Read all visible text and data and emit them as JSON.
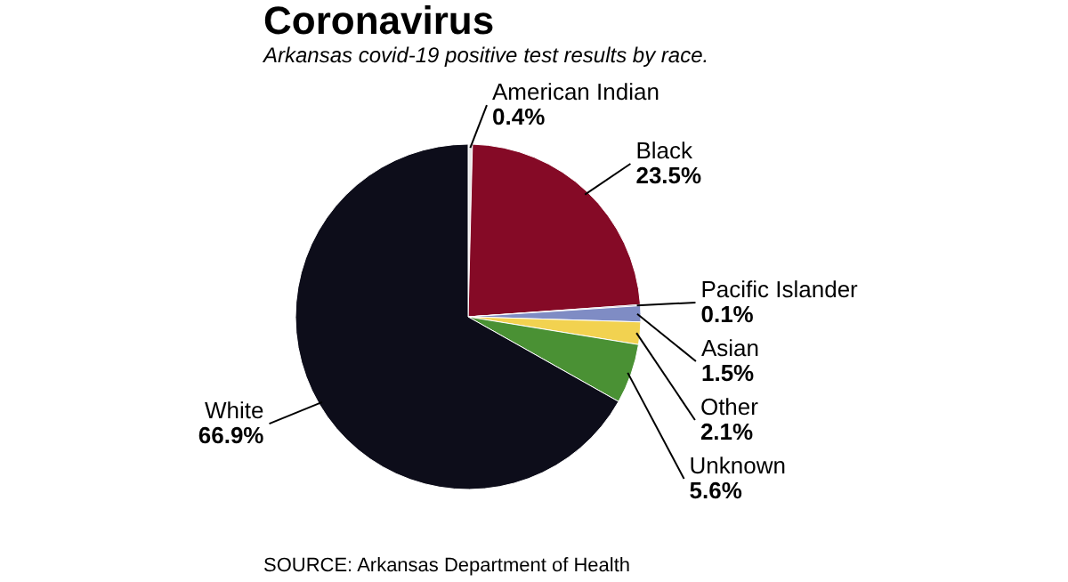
{
  "chart_data": {
    "type": "pie",
    "title": "Coronavirus",
    "subtitle": "Arkansas covid-19 positive test results by race.",
    "categories": [
      "American Indian",
      "Black",
      "Pacific Islander",
      "Asian",
      "Other",
      "Unknown",
      "White"
    ],
    "values": [
      0.4,
      23.5,
      0.1,
      1.5,
      2.1,
      5.6,
      66.9
    ],
    "value_labels": [
      "0.4%",
      "23.5%",
      "0.1%",
      "1.5%",
      "2.1%",
      "5.6%",
      "66.9%"
    ],
    "colors": [
      "#e8e8e8",
      "#850a26",
      "#2a2f5a",
      "#7f8cc4",
      "#f2d250",
      "#4a9134",
      "#0d0d1a"
    ],
    "annotations": [
      "SOURCE: Arkansas Department of Health"
    ]
  }
}
